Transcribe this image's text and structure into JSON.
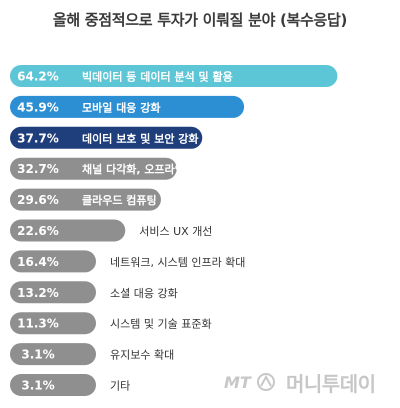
{
  "chart_data": {
    "type": "bar",
    "orientation": "horizontal",
    "title": "올해 중점적으로 투자가 이뤄질 분야 (복수응답)",
    "value_suffix": "%",
    "xlim": [
      0,
      100
    ],
    "grid": false,
    "legend": "none",
    "categories": [
      "빅데이터 등 데이터 분석 및 활용",
      "모바일 대응 강화",
      "데이터 보호 및 보안 강화",
      "채널 다각화, 오프라인 연동",
      "클라우드 컴퓨팅",
      "서비스 UX 개선",
      "네트워크, 시스템 인프라 확대",
      "소셜 대응 강화",
      "시스템 및 기술 표준화",
      "유지보수 확대",
      "기타"
    ],
    "values": [
      64.2,
      45.9,
      37.7,
      32.7,
      29.6,
      22.6,
      16.4,
      13.2,
      11.3,
      3.1,
      3.1
    ],
    "value_labels": [
      "64.2%",
      "45.9%",
      "37.7%",
      "32.7%",
      "29.6%",
      "22.6%",
      "16.4%",
      "13.2%",
      "11.3%",
      "3.1%",
      "3.1%"
    ],
    "colors": [
      "#5cc6d6",
      "#2c8fd3",
      "#1f3f7c",
      "#8f8f8f",
      "#8f8f8f",
      "#8f8f8f",
      "#8f8f8f",
      "#8f8f8f",
      "#8f8f8f",
      "#8f8f8f",
      "#8f8f8f"
    ]
  },
  "watermark": {
    "logo_text": "MT",
    "name": "머니투데이"
  }
}
